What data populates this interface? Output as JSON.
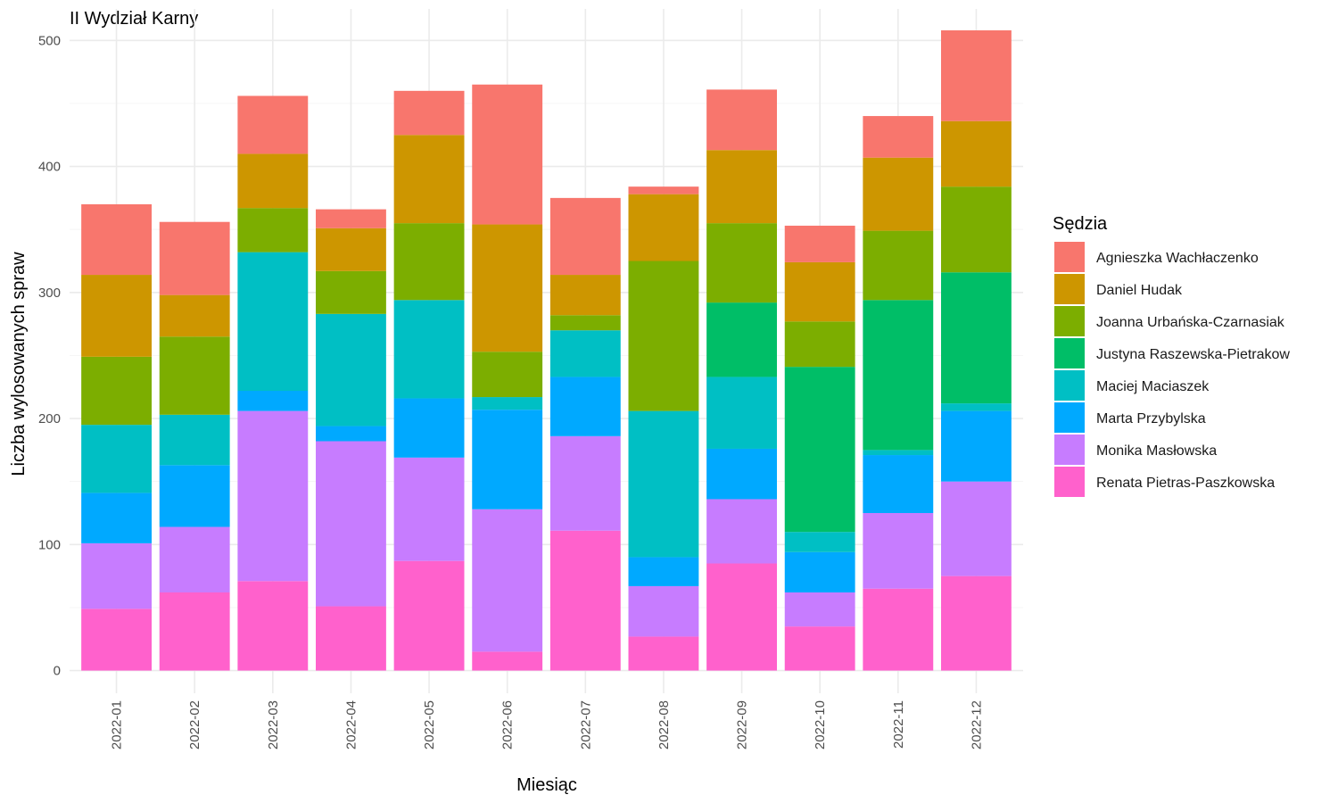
{
  "chart_data": {
    "type": "bar",
    "stacked": true,
    "title": "II Wydział Karny",
    "xlabel": "Miesiąc",
    "ylabel": "Liczba wylosowanych spraw",
    "ylim": [
      -18,
      525
    ],
    "yticks": [
      0,
      100,
      200,
      300,
      400,
      500
    ],
    "grid": true,
    "legend_title": "Sędzia",
    "legend_position": "right",
    "categories": [
      "2022-01",
      "2022-02",
      "2022-03",
      "2022-04",
      "2022-05",
      "2022-06",
      "2022-07",
      "2022-08",
      "2022-09",
      "2022-10",
      "2022-11",
      "2022-12"
    ],
    "series": [
      {
        "name": "Agnieszka Wachłaczenko",
        "color": "#F8766D",
        "values": [
          56,
          58,
          46,
          15,
          35,
          111,
          61,
          6,
          48,
          29,
          33,
          72
        ]
      },
      {
        "name": "Daniel Hudak",
        "color": "#CD9600",
        "values": [
          65,
          33,
          43,
          34,
          70,
          101,
          32,
          53,
          58,
          47,
          58,
          52
        ]
      },
      {
        "name": "Joanna Urbańska-Czarnasiak",
        "color": "#7CAE00",
        "values": [
          54,
          62,
          35,
          34,
          61,
          36,
          12,
          119,
          63,
          36,
          55,
          68
        ]
      },
      {
        "name": "Justyna Raszewska-Pietrakow",
        "color": "#00BE67",
        "values": [
          0,
          0,
          0,
          0,
          0,
          0,
          0,
          0,
          59,
          131,
          119,
          104
        ]
      },
      {
        "name": "Maciej Maciaszek",
        "color": "#00BFC4",
        "values": [
          54,
          40,
          110,
          89,
          78,
          10,
          37,
          116,
          57,
          16,
          4,
          6
        ]
      },
      {
        "name": "Marta Przybylska",
        "color": "#00A9FF",
        "values": [
          40,
          49,
          16,
          12,
          47,
          79,
          47,
          23,
          40,
          32,
          46,
          56
        ]
      },
      {
        "name": "Monika Masłowska",
        "color": "#C77CFF",
        "values": [
          52,
          52,
          135,
          131,
          82,
          113,
          75,
          40,
          51,
          27,
          60,
          75
        ]
      },
      {
        "name": "Renata Pietras-Paszkowska",
        "color": "#FF61CC",
        "values": [
          49,
          62,
          71,
          51,
          87,
          15,
          111,
          27,
          85,
          35,
          65,
          75
        ]
      }
    ]
  }
}
